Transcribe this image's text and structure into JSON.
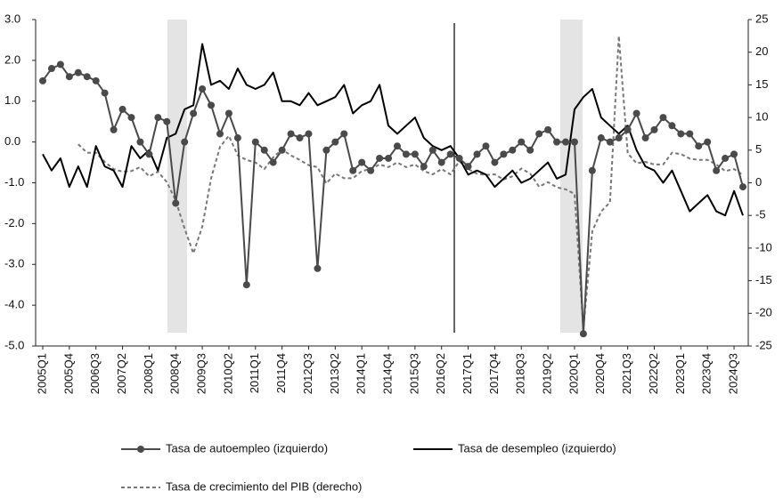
{
  "chart_data": {
    "type": "line",
    "categories": [
      "2005Q1",
      null,
      null,
      "2005Q4",
      null,
      null,
      "2006Q3",
      null,
      null,
      "2007Q2",
      null,
      null,
      "2008Q1",
      null,
      null,
      "2008Q4",
      null,
      null,
      "2009Q3",
      null,
      null,
      "2010Q2",
      null,
      null,
      "2011Q1",
      null,
      null,
      "2011Q4",
      null,
      null,
      "2012Q3",
      null,
      null,
      "2013Q2",
      null,
      null,
      "2014Q1",
      null,
      null,
      "2014Q4",
      null,
      null,
      "2015Q3",
      null,
      null,
      "2016Q2",
      null,
      null,
      "2017Q1",
      null,
      null,
      "2017Q4",
      null,
      null,
      "2018Q3",
      null,
      null,
      "2019Q2",
      null,
      null,
      "2020Q1",
      null,
      null,
      "2020Q4",
      null,
      null,
      "2021Q3",
      null,
      null,
      "2022Q2",
      null,
      null,
      "2023Q1",
      null,
      null,
      "2023Q4",
      null,
      null,
      "2024Q3",
      null
    ],
    "series": [
      {
        "name": "Tasa de autoempleo (izquierdo)",
        "color": "#4a4a4a",
        "marker": "circle",
        "linestyle": "solid",
        "axis": "y",
        "values": [
          1.5,
          1.8,
          1.9,
          1.6,
          1.7,
          1.6,
          1.5,
          1.2,
          0.3,
          0.8,
          0.6,
          0.0,
          -0.3,
          0.6,
          0.5,
          -1.5,
          0.0,
          0.7,
          1.3,
          0.9,
          0.2,
          0.7,
          0.1,
          -3.5,
          0.0,
          -0.2,
          -0.5,
          -0.2,
          0.2,
          0.1,
          0.2,
          -3.1,
          -0.2,
          0.0,
          0.2,
          -0.7,
          -0.5,
          -0.7,
          -0.4,
          -0.4,
          -0.1,
          -0.3,
          -0.3,
          -0.6,
          -0.2,
          -0.5,
          -0.3,
          -0.4,
          -0.6,
          -0.3,
          -0.1,
          -0.5,
          -0.3,
          -0.2,
          0.0,
          -0.2,
          0.2,
          0.3,
          0.0,
          0.0,
          0.0,
          -4.7,
          -0.7,
          0.1,
          0.0,
          0.1,
          0.3,
          0.7,
          0.1,
          0.3,
          0.6,
          0.4,
          0.2,
          0.2,
          -0.1,
          0.0,
          -0.7,
          -0.4,
          -0.3,
          -1.1
        ]
      },
      {
        "name": "Tasa de desempleo (izquierdo)",
        "color": "#000000",
        "linestyle": "solid",
        "axis": "y",
        "values": [
          -0.3,
          -0.7,
          -0.4,
          -1.1,
          -0.6,
          -1.1,
          -0.1,
          -0.6,
          -0.7,
          -1.1,
          -0.1,
          -0.4,
          -0.2,
          -0.7,
          0.1,
          0.2,
          0.8,
          0.9,
          2.4,
          1.4,
          1.5,
          1.3,
          1.8,
          1.4,
          1.3,
          1.4,
          1.7,
          1.0,
          1.0,
          0.9,
          1.2,
          0.9,
          1.0,
          1.1,
          1.4,
          0.7,
          0.9,
          1.0,
          1.4,
          0.4,
          0.2,
          0.4,
          0.6,
          0.1,
          -0.1,
          -0.2,
          -0.1,
          -0.4,
          -0.8,
          -0.7,
          -0.8,
          -1.1,
          -0.9,
          -0.7,
          -1.0,
          -0.9,
          -0.7,
          -0.5,
          -0.9,
          -0.8,
          0.8,
          1.1,
          1.3,
          0.6,
          0.4,
          0.2,
          0.4,
          -0.2,
          -0.6,
          -0.7,
          -1.0,
          -0.7,
          -1.2,
          -1.7,
          -1.5,
          -1.3,
          -1.7,
          -1.8,
          -1.2,
          -1.8
        ]
      },
      {
        "name": "Tasa de crecimiento del PIB (derecho)",
        "color": "#777777",
        "linestyle": "dashed",
        "axis": "y2",
        "values": [
          null,
          null,
          null,
          null,
          5.9,
          4.6,
          4.6,
          3.2,
          2.1,
          1.7,
          1.8,
          2.4,
          1.0,
          1.7,
          0.1,
          -2.7,
          -7.0,
          -10.8,
          -6.7,
          0.7,
          5.5,
          7.2,
          4.2,
          3.5,
          3.1,
          2.1,
          3.9,
          5.1,
          4.2,
          3.5,
          2.7,
          2.4,
          -0.1,
          1.4,
          0.7,
          0.7,
          1.8,
          2.1,
          2.8,
          2.4,
          3.1,
          2.4,
          2.8,
          1.8,
          1.3,
          2.1,
          1.3,
          3.3,
          2.1,
          1.4,
          1.2,
          1.3,
          0.5,
          1.0,
          2.2,
          1.4,
          -0.6,
          0.1,
          -0.7,
          -1.0,
          -1.7,
          -22.4,
          -7.4,
          -4.4,
          -3.0,
          22.5,
          4.5,
          3.0,
          3.2,
          2.8,
          2.8,
          4.6,
          4.4,
          3.7,
          3.5,
          3.5,
          2.8,
          1.8,
          2.1,
          1.2
        ]
      }
    ],
    "ylim": [
      -5,
      3
    ],
    "yticks": [
      {
        "value": 3,
        "label": "3.0"
      },
      {
        "value": 2,
        "label": "2.0"
      },
      {
        "value": 1,
        "label": "1.0"
      },
      {
        "value": 0,
        "label": "0.0"
      },
      {
        "value": -1,
        "label": "-1.0"
      },
      {
        "value": -2,
        "label": "-2.0"
      },
      {
        "value": -3,
        "label": "-3.0"
      },
      {
        "value": -4,
        "label": "-4.0"
      },
      {
        "value": -5,
        "label": "-5.0"
      }
    ],
    "y2lim": [
      -25,
      25
    ],
    "y2ticks": [
      25,
      20,
      15,
      10,
      5,
      0,
      -5,
      -10,
      -15,
      -20,
      -25
    ],
    "grid": false,
    "legend": "bottom"
  }
}
